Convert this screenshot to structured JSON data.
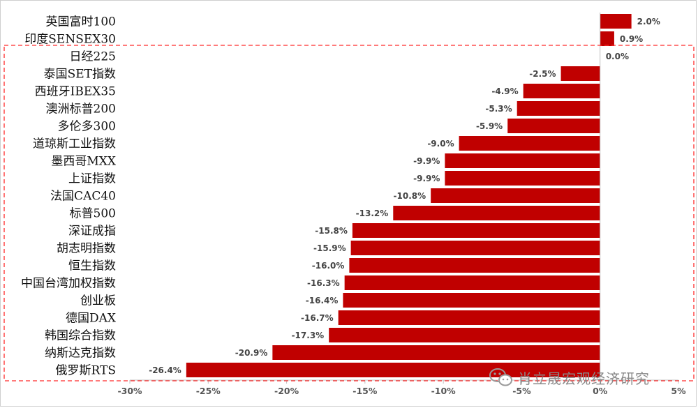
{
  "chart_data": {
    "type": "bar",
    "orientation": "horizontal",
    "categories": [
      "英国富时100",
      "印度SENSEX30",
      "日经225",
      "泰国SET指数",
      "西班牙IBEX35",
      "澳洲标普200",
      "多伦多300",
      "道琼斯工业指数",
      "墨西哥MXX",
      "上证指数",
      "法国CAC40",
      "标普500",
      "深证成指",
      "胡志明指数",
      "恒生指数",
      "中国台湾加权指数",
      "创业板",
      "德国DAX",
      "韩国综合指数",
      "纳斯达克指数",
      "俄罗斯RTS"
    ],
    "values": [
      2.0,
      0.9,
      0.0,
      -2.5,
      -4.9,
      -5.3,
      -5.9,
      -9.0,
      -9.9,
      -9.9,
      -10.8,
      -13.2,
      -15.8,
      -15.9,
      -16.0,
      -16.3,
      -16.4,
      -16.7,
      -17.3,
      -20.9,
      -26.4
    ],
    "value_labels": [
      "2.0%",
      "0.9%",
      "0.0%",
      "-2.5%",
      "-4.9%",
      "-5.3%",
      "-5.9%",
      "-9.0%",
      "-9.9%",
      "-9.9%",
      "-10.8%",
      "-13.2%",
      "-15.8%",
      "-15.9%",
      "-16.0%",
      "-16.3%",
      "-16.4%",
      "-16.7%",
      "-17.3%",
      "-20.9%",
      "-26.4%"
    ],
    "xlim": [
      -30,
      5
    ],
    "x_ticks": [
      -30,
      -25,
      -20,
      -15,
      -10,
      -5,
      0,
      5
    ],
    "x_tick_labels": [
      "-30%",
      "-25%",
      "-20%",
      "-15%",
      "-10%",
      "-5%",
      "0%",
      "5%"
    ],
    "title": "",
    "xlabel": "",
    "ylabel": "",
    "grid": false,
    "legend": "none",
    "bar_color": "#c00000",
    "highlight_box": {
      "from_category": "日经225",
      "to_category": "俄罗斯RTS",
      "style": "dashed",
      "color": "#ff2a2a"
    }
  },
  "watermark": {
    "text": "肖立晟宏观经济研究",
    "icon": "wechat-icon"
  }
}
